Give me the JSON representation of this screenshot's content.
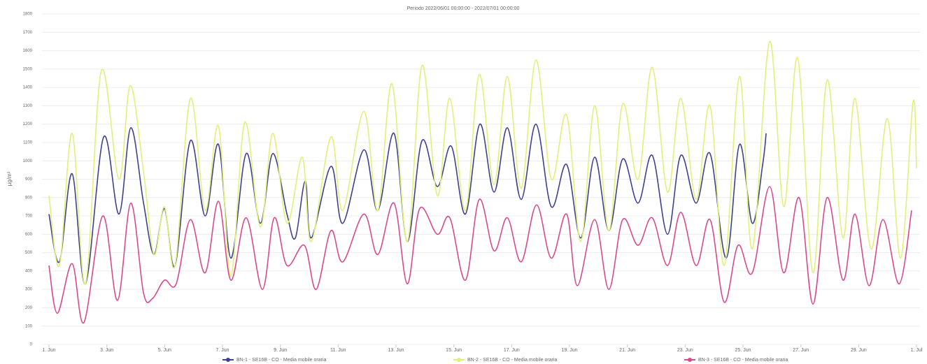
{
  "chart_data": {
    "type": "line",
    "title": "Periodo 2022/06/01 00:00:00 - 2022/07/01 00:00:00",
    "y_label": "µg/m³",
    "xlim": [
      0,
      30
    ],
    "xticks": [
      {
        "value": 0,
        "label": "1. Jun"
      },
      {
        "value": 2,
        "label": "3. Jun"
      },
      {
        "value": 4,
        "label": "5. Jun"
      },
      {
        "value": 6,
        "label": "7. Jun"
      },
      {
        "value": 8,
        "label": "9. Jun"
      },
      {
        "value": 10,
        "label": "11. Jun"
      },
      {
        "value": 12,
        "label": "13. Jun"
      },
      {
        "value": 14,
        "label": "15. Jun"
      },
      {
        "value": 16,
        "label": "17. Jun"
      },
      {
        "value": 18,
        "label": "19. Jun"
      },
      {
        "value": 20,
        "label": "21. Jun"
      },
      {
        "value": 22,
        "label": "23. Jun"
      },
      {
        "value": 24,
        "label": "25. Jun"
      },
      {
        "value": 26,
        "label": "27. Jun"
      },
      {
        "value": 28,
        "label": "29. Jun"
      },
      {
        "value": 30,
        "label": "1. Jul"
      }
    ],
    "ylim": [
      0,
      1800
    ],
    "yticks": [
      0,
      100,
      200,
      300,
      400,
      500,
      600,
      700,
      800,
      900,
      1000,
      1100,
      1200,
      1300,
      1400,
      1500,
      1600,
      1700,
      1800
    ],
    "grid": true,
    "legend": "bottom",
    "series": [
      {
        "name": "BN-1 - SE16B - CO - Media mobile oraria",
        "color": "#3d4190",
        "x": [
          0,
          0.36,
          0.8,
          1.26,
          1.89,
          2.42,
          2.83,
          3.27,
          3.63,
          3.99,
          4.36,
          4.89,
          5.4,
          5.86,
          6.29,
          6.82,
          7.31,
          7.74,
          8.23,
          8.52,
          8.86,
          9.07,
          9.75,
          10.16,
          10.89,
          11.37,
          11.93,
          12.39,
          12.9,
          13.43,
          13.91,
          14.4,
          14.9,
          15.39,
          15.85,
          16.33,
          16.84,
          17.37,
          17.9,
          18.39,
          18.87,
          19.36,
          19.84,
          20.37,
          20.86,
          21.39,
          21.85,
          22.38,
          22.86,
          23.42,
          23.88,
          24.32,
          24.68,
          24.8
        ],
        "values": [
          710,
          450,
          930,
          330,
          1130,
          710,
          1180,
          770,
          490,
          740,
          430,
          1110,
          700,
          1090,
          470,
          1040,
          660,
          1040,
          710,
          580,
          890,
          580,
          970,
          660,
          1060,
          730,
          1150,
          560,
          1110,
          860,
          1080,
          710,
          1200,
          830,
          1180,
          790,
          1200,
          750,
          980,
          580,
          1020,
          620,
          1010,
          770,
          1030,
          600,
          1030,
          770,
          1040,
          470,
          1090,
          660,
          980,
          1150
        ]
      },
      {
        "name": "BN-2 - SE16B - CO - Media mobile oraria",
        "color": "#e2f07a",
        "x": [
          0,
          0.36,
          0.8,
          1.26,
          1.81,
          2.42,
          2.81,
          3.27,
          3.63,
          3.99,
          4.36,
          4.89,
          5.4,
          5.86,
          6.29,
          6.77,
          7.31,
          7.74,
          8.23,
          8.76,
          9.07,
          9.75,
          10.16,
          10.89,
          11.37,
          11.86,
          12.39,
          12.9,
          13.43,
          13.86,
          14.4,
          14.88,
          15.39,
          15.85,
          16.33,
          16.84,
          17.37,
          17.9,
          18.39,
          18.87,
          19.36,
          19.84,
          20.37,
          20.86,
          21.39,
          21.85,
          22.38,
          22.86,
          23.35,
          23.88,
          24.32,
          24.92,
          25.41,
          25.89,
          26.42,
          26.91,
          27.46,
          27.87,
          28.43,
          28.99,
          29.45,
          29.88,
          30
        ],
        "values": [
          810,
          430,
          1150,
          330,
          1490,
          900,
          1410,
          940,
          490,
          750,
          430,
          1340,
          730,
          1190,
          370,
          1210,
          640,
          1150,
          660,
          1020,
          560,
          1130,
          730,
          1270,
          730,
          1420,
          560,
          1520,
          810,
          1340,
          730,
          1470,
          870,
          1460,
          850,
          1550,
          900,
          1250,
          560,
          1300,
          620,
          1310,
          900,
          1510,
          830,
          1340,
          790,
          1300,
          430,
          1460,
          520,
          1650,
          750,
          1560,
          390,
          1440,
          580,
          1340,
          520,
          1230,
          470,
          1320,
          960
        ]
      },
      {
        "name": "BN-3 - SE16B - CO - Media mobile oraria",
        "color": "#d84a8e",
        "x": [
          0,
          0.29,
          0.8,
          1.21,
          1.86,
          2.37,
          2.83,
          3.27,
          3.58,
          3.99,
          4.4,
          4.89,
          5.4,
          5.86,
          6.29,
          6.82,
          7.38,
          7.79,
          8.23,
          8.83,
          9.24,
          9.75,
          10.16,
          10.89,
          11.37,
          11.93,
          12.39,
          12.82,
          13.43,
          13.86,
          14.4,
          14.88,
          15.39,
          15.85,
          16.33,
          16.86,
          17.37,
          17.9,
          18.27,
          18.87,
          19.36,
          19.84,
          20.37,
          20.86,
          21.39,
          21.85,
          22.38,
          22.86,
          23.35,
          23.83,
          24.32,
          24.92,
          25.41,
          25.94,
          26.42,
          26.91,
          27.46,
          27.87,
          28.36,
          28.84,
          29.4,
          29.83
        ],
        "values": [
          430,
          170,
          440,
          120,
          700,
          240,
          770,
          280,
          250,
          350,
          330,
          680,
          390,
          780,
          350,
          690,
          300,
          690,
          430,
          540,
          300,
          620,
          450,
          710,
          490,
          770,
          330,
          740,
          600,
          690,
          350,
          790,
          510,
          690,
          450,
          760,
          470,
          710,
          320,
          680,
          300,
          680,
          540,
          690,
          430,
          720,
          430,
          680,
          230,
          540,
          390,
          860,
          390,
          800,
          220,
          800,
          350,
          710,
          320,
          680,
          330,
          730
        ]
      }
    ]
  }
}
